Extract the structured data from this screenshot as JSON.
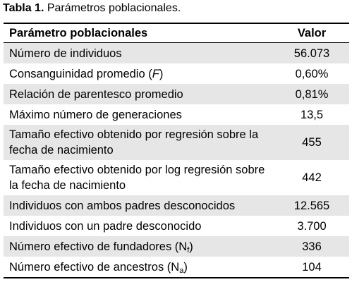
{
  "caption": {
    "label": "Tabla 1.",
    "text": " Parámetros poblacionales."
  },
  "table": {
    "headers": {
      "param": "Parámetro poblacionales",
      "value": "Valor"
    },
    "rows": [
      {
        "label": "Número de individuos",
        "value": "56.073"
      },
      {
        "label": "Consanguinidad promedio (",
        "label_italic": "F",
        "label_after": ")",
        "value": "0,60%"
      },
      {
        "label": "Relación de parentesco promedio",
        "value": "0,81%"
      },
      {
        "label": "Máximo número de generaciones",
        "value": "13,5"
      },
      {
        "label": "Tamaño efectivo obtenido por regresión sobre la fecha de nacimiento",
        "value": "455"
      },
      {
        "label": "Tamaño efectivo obtenido por log regresión sobre la fecha de nacimiento",
        "value": "442"
      },
      {
        "label": "Individuos con ambos padres desconocidos",
        "value": "12.565"
      },
      {
        "label": "Individuos con un padre desconocido",
        "value": "3.700"
      },
      {
        "label": "Número efectivo de fundadores (N",
        "label_sub": "f",
        "label_after": ")",
        "value": "336"
      },
      {
        "label": "Número efectivo de ancestros (N",
        "label_sub": "a",
        "label_after": ")",
        "value": "104"
      }
    ]
  }
}
